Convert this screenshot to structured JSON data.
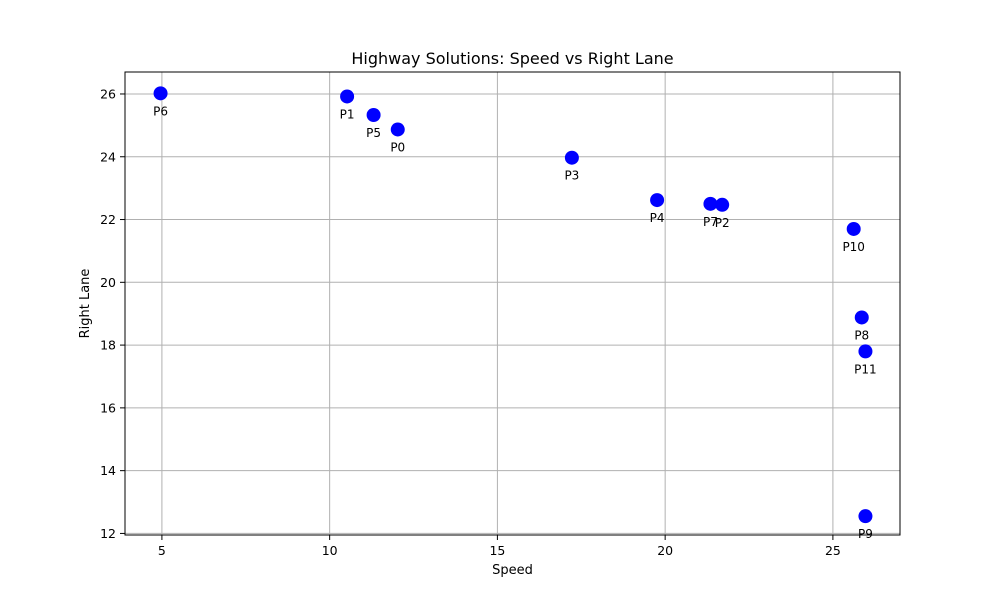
{
  "chart_data": {
    "type": "scatter",
    "title": "Highway Solutions: Speed vs Right Lane",
    "xlabel": "Speed",
    "ylabel": "Right Lane",
    "xlim": [
      3.9,
      27.0
    ],
    "ylim": [
      11.95,
      26.7
    ],
    "xticks": [
      5,
      10,
      15,
      20,
      25
    ],
    "yticks": [
      12,
      14,
      16,
      18,
      20,
      22,
      24,
      26
    ],
    "grid": true,
    "marker_color": "#0000ff",
    "points": [
      {
        "label": "P0",
        "x": 12.03,
        "y": 24.87
      },
      {
        "label": "P1",
        "x": 10.52,
        "y": 25.92
      },
      {
        "label": "P2",
        "x": 21.7,
        "y": 22.47
      },
      {
        "label": "P3",
        "x": 17.22,
        "y": 23.97
      },
      {
        "label": "P4",
        "x": 19.76,
        "y": 22.62
      },
      {
        "label": "P5",
        "x": 11.31,
        "y": 25.33
      },
      {
        "label": "P6",
        "x": 4.96,
        "y": 26.02
      },
      {
        "label": "P7",
        "x": 21.35,
        "y": 22.5
      },
      {
        "label": "P8",
        "x": 25.86,
        "y": 18.88
      },
      {
        "label": "P9",
        "x": 25.97,
        "y": 12.55
      },
      {
        "label": "P10",
        "x": 25.62,
        "y": 21.7
      },
      {
        "label": "P11",
        "x": 25.97,
        "y": 17.8
      }
    ]
  }
}
